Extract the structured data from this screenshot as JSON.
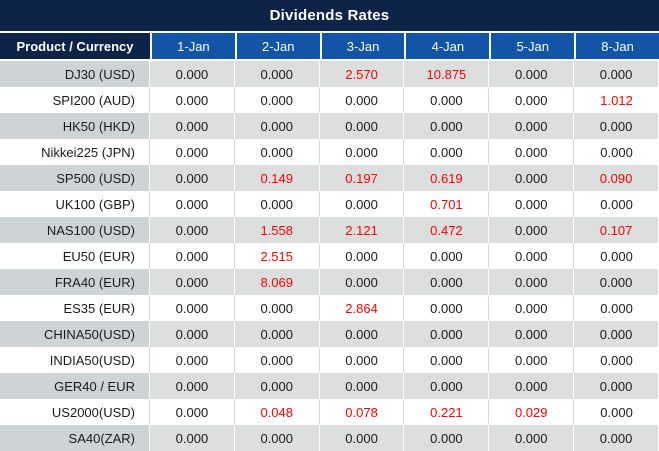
{
  "title": "Dividends Rates",
  "colors": {
    "title_bar_bg": "#0d2347",
    "header_bg": "#1254a5",
    "header_text": "#ffffff",
    "zero_value_text": "#1a1a1a",
    "nonzero_value_text": "#fe0000",
    "stripe_product_bg": "#ced3d6",
    "stripe_value_bg": "#dcdedd",
    "white_row_bg": "#ffffff",
    "grid_line": "#d9d9d9"
  },
  "table": {
    "product_header": "Product / Currency",
    "date_columns": [
      "1-Jan",
      "2-Jan",
      "3-Jan",
      "4-Jan",
      "5-Jan",
      "8-Jan"
    ],
    "zero_value": "0.000",
    "rows": [
      {
        "product": "DJ30 (USD)",
        "values": [
          "0.000",
          "0.000",
          "2.570",
          "10.875",
          "0.000",
          "0.000"
        ]
      },
      {
        "product": "SPI200 (AUD)",
        "values": [
          "0.000",
          "0.000",
          "0.000",
          "0.000",
          "0.000",
          "1.012"
        ]
      },
      {
        "product": "HK50 (HKD)",
        "values": [
          "0.000",
          "0.000",
          "0.000",
          "0.000",
          "0.000",
          "0.000"
        ]
      },
      {
        "product": "Nikkei225 (JPN)",
        "values": [
          "0.000",
          "0.000",
          "0.000",
          "0.000",
          "0.000",
          "0.000"
        ]
      },
      {
        "product": "SP500 (USD)",
        "values": [
          "0.000",
          "0.149",
          "0.197",
          "0.619",
          "0.000",
          "0.090"
        ]
      },
      {
        "product": "UK100 (GBP)",
        "values": [
          "0.000",
          "0.000",
          "0.000",
          "0.701",
          "0.000",
          "0.000"
        ]
      },
      {
        "product": "NAS100 (USD)",
        "values": [
          "0.000",
          "1.558",
          "2.121",
          "0.472",
          "0.000",
          "0.107"
        ]
      },
      {
        "product": "EU50 (EUR)",
        "values": [
          "0.000",
          "2.515",
          "0.000",
          "0.000",
          "0.000",
          "0.000"
        ]
      },
      {
        "product": "FRA40 (EUR)",
        "values": [
          "0.000",
          "8.069",
          "0.000",
          "0.000",
          "0.000",
          "0.000"
        ]
      },
      {
        "product": "ES35 (EUR)",
        "values": [
          "0.000",
          "0.000",
          "2.864",
          "0.000",
          "0.000",
          "0.000"
        ]
      },
      {
        "product": "CHINA50(USD)",
        "values": [
          "0.000",
          "0.000",
          "0.000",
          "0.000",
          "0.000",
          "0.000"
        ]
      },
      {
        "product": "INDIA50(USD)",
        "values": [
          "0.000",
          "0.000",
          "0.000",
          "0.000",
          "0.000",
          "0.000"
        ]
      },
      {
        "product": "GER40 / EUR",
        "values": [
          "0.000",
          "0.000",
          "0.000",
          "0.000",
          "0.000",
          "0.000"
        ]
      },
      {
        "product": "US2000(USD)",
        "values": [
          "0.000",
          "0.048",
          "0.078",
          "0.221",
          "0.029",
          "0.000"
        ]
      },
      {
        "product": "SA40(ZAR)",
        "values": [
          "0.000",
          "0.000",
          "0.000",
          "0.000",
          "0.000",
          "0.000"
        ]
      }
    ]
  }
}
